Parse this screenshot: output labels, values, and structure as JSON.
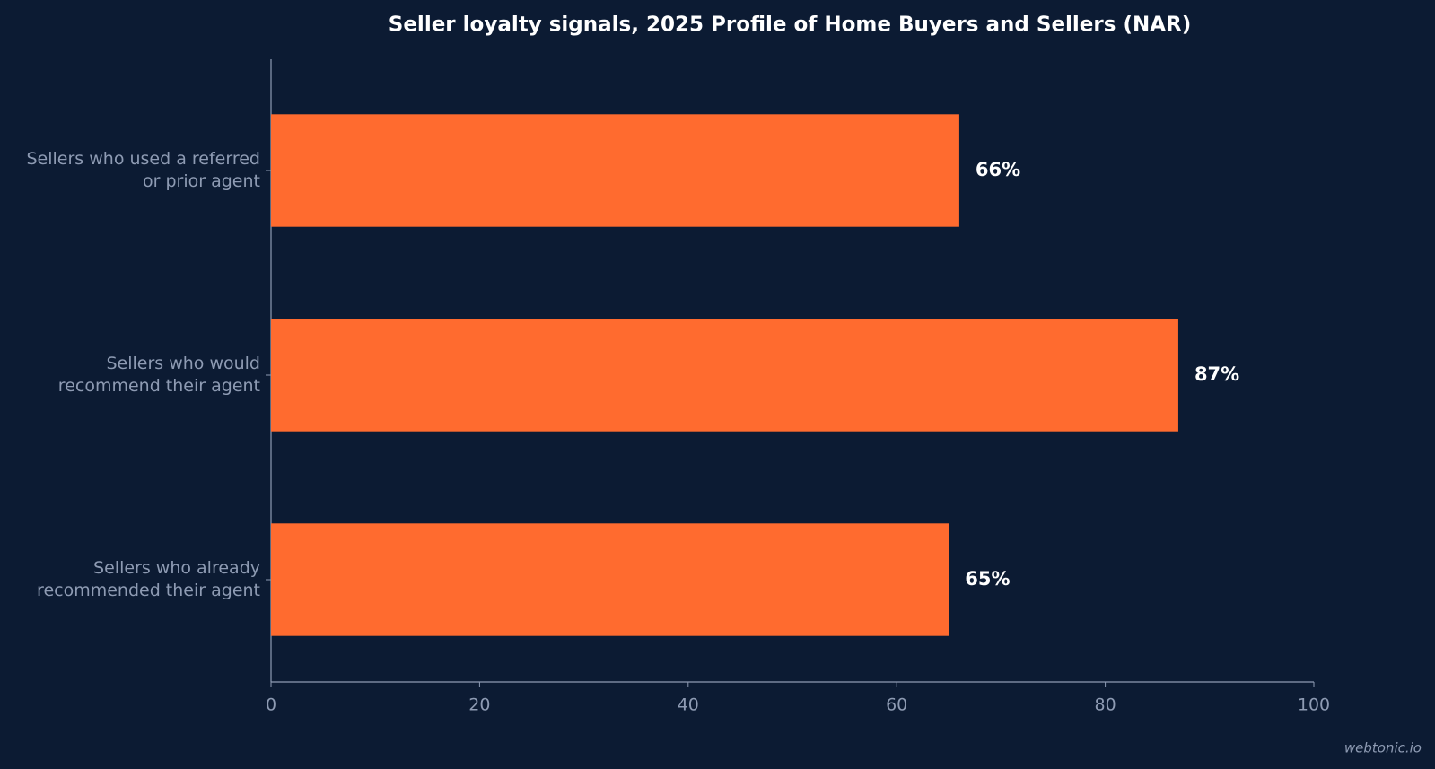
{
  "chart_data": {
    "type": "barh",
    "title": "Seller loyalty signals, 2025 Profile of Home Buyers and Sellers (NAR)",
    "categories": [
      "Sellers who used a referred\nor prior agent",
      "Sellers who would\nrecommend their agent",
      "Sellers who already\nrecommended their agent"
    ],
    "values": [
      66,
      87,
      65
    ],
    "value_labels": [
      "66%",
      "87%",
      "65%"
    ],
    "color": "#ff6b2f",
    "xlim": [
      0,
      100
    ],
    "xticks": [
      0,
      20,
      40,
      60,
      80,
      100
    ],
    "grid": false,
    "watermark": "webtonic.io"
  }
}
